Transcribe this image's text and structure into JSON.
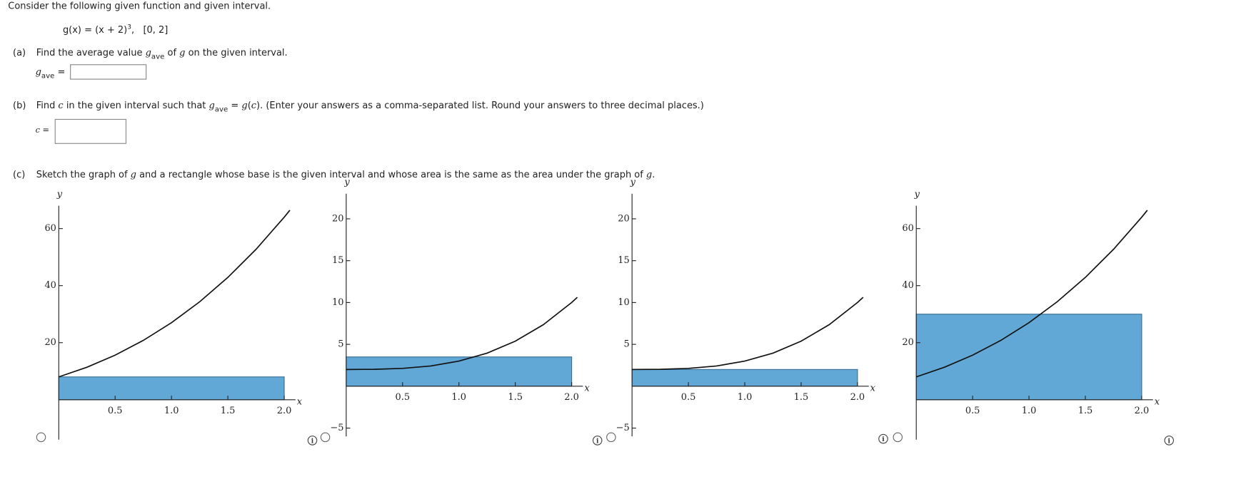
{
  "intro": "Consider the following given function and given interval.",
  "function": {
    "expr": "g(x) = (x + 2)",
    "exponent": "3",
    "interval": ",   [0, 2]"
  },
  "part_a": {
    "label": "(a)",
    "text": [
      "Find the average value ",
      "g",
      "ave",
      " of ",
      "g",
      " on the given interval."
    ],
    "answer_label": [
      "g",
      "ave",
      " ="
    ]
  },
  "part_b": {
    "label": "(b)",
    "text": [
      "Find ",
      "c",
      " in the given interval such that ",
      "g",
      "ave",
      " = ",
      "g",
      "(",
      "c",
      "). (Enter your answers as a comma-separated list. Round your answers to three decimal places.)"
    ],
    "answer_label": [
      "c",
      " ="
    ]
  },
  "part_c": {
    "label": "(c)",
    "text": [
      "Sketch the graph of ",
      "g",
      " and a rectangle whose base is the given interval and whose area is the same as the area under the graph of ",
      "g",
      "."
    ]
  },
  "graphs": [
    {
      "y_label": "y",
      "x_label": "x",
      "xlim": [
        0,
        2.1
      ],
      "ylim": [
        -14,
        68
      ],
      "xticks": [
        {
          "value": 0.5,
          "label": "0.5"
        },
        {
          "value": 1,
          "label": "1.0"
        },
        {
          "value": 1.5,
          "label": "1.5"
        },
        {
          "value": 2,
          "label": "2.0"
        }
      ],
      "yticks": [
        20,
        40,
        60
      ],
      "curve": {
        "x": [
          0,
          0.25,
          0.5,
          0.75,
          1,
          1.25,
          1.5,
          1.75,
          2,
          2.05
        ],
        "y": [
          8,
          11.39,
          15.63,
          20.8,
          27,
          34.33,
          42.88,
          52.73,
          64,
          66.43
        ]
      },
      "rectangle": {
        "x": [
          0,
          2
        ],
        "height": 8
      },
      "color": "#62a8d6"
    },
    {
      "y_label": "y",
      "x_label": "x",
      "xlim": [
        0,
        2.1
      ],
      "ylim": [
        -6,
        23
      ],
      "xticks": [
        {
          "value": 0.5,
          "label": "0.5"
        },
        {
          "value": 1,
          "label": "1.0"
        },
        {
          "value": 1.5,
          "label": "1.5"
        },
        {
          "value": 2,
          "label": "2.0"
        }
      ],
      "yticks": [
        {
          "value": -5,
          "label": "−5"
        },
        5,
        10,
        15,
        20
      ],
      "curve": {
        "x": [
          0,
          0.25,
          0.5,
          0.75,
          1,
          1.25,
          1.5,
          1.75,
          2,
          2.05
        ],
        "y": [
          2,
          2.02,
          2.13,
          2.42,
          3,
          3.95,
          5.38,
          7.36,
          10,
          10.62
        ]
      },
      "rectangle": {
        "x": [
          0,
          2
        ],
        "height": 3.5
      },
      "color": "#62a8d6"
    },
    {
      "y_label": "y",
      "x_label": "x",
      "xlim": [
        0,
        2.1
      ],
      "ylim": [
        -6,
        23
      ],
      "xticks": [
        {
          "value": 0.5,
          "label": "0.5"
        },
        {
          "value": 1,
          "label": "1.0"
        },
        {
          "value": 1.5,
          "label": "1.5"
        },
        {
          "value": 2,
          "label": "2.0"
        }
      ],
      "yticks": [
        {
          "value": -5,
          "label": "−5"
        },
        5,
        10,
        15,
        20
      ],
      "curve": {
        "x": [
          0,
          0.25,
          0.5,
          0.75,
          1,
          1.25,
          1.5,
          1.75,
          2,
          2.05
        ],
        "y": [
          2,
          2.02,
          2.13,
          2.42,
          3,
          3.95,
          5.38,
          7.36,
          10,
          10.62
        ]
      },
      "rectangle": {
        "x": [
          0,
          2
        ],
        "height": 2
      },
      "color": "#62a8d6"
    },
    {
      "y_label": "y",
      "x_label": "x",
      "xlim": [
        0,
        2.1
      ],
      "ylim": [
        -14,
        68
      ],
      "xticks": [
        {
          "value": 0.5,
          "label": "0.5"
        },
        {
          "value": 1,
          "label": "1.0"
        },
        {
          "value": 1.5,
          "label": "1.5"
        },
        {
          "value": 2,
          "label": "2.0"
        }
      ],
      "yticks": [
        20,
        40,
        60
      ],
      "curve": {
        "x": [
          0,
          0.25,
          0.5,
          0.75,
          1,
          1.25,
          1.5,
          1.75,
          2,
          2.05
        ],
        "y": [
          8,
          11.39,
          15.63,
          20.8,
          27,
          34.33,
          42.88,
          52.73,
          64,
          66.43
        ]
      },
      "rectangle": {
        "x": [
          0,
          2
        ],
        "height": 30
      },
      "color": "#62a8d6"
    }
  ]
}
